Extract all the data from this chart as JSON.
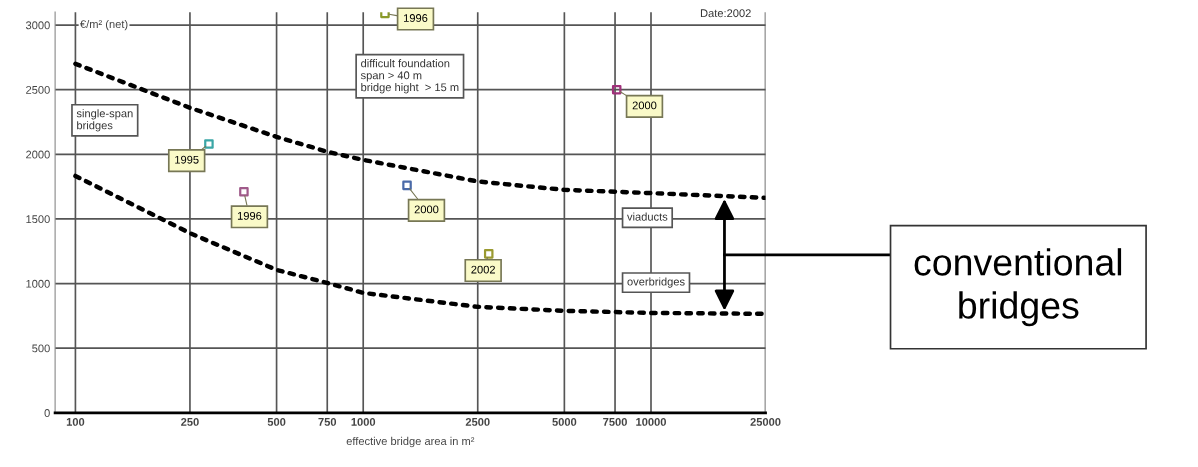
{
  "chart_data": {
    "type": "scatter",
    "xlabel": "effective bridge area in m²",
    "ylabel": "€/m² (net)",
    "log": "x",
    "xlim": [
      85,
      25000
    ],
    "xticks": [
      100,
      250,
      500,
      750,
      1000,
      2500,
      5000,
      7500,
      10000,
      25000
    ],
    "ylim": [
      0,
      3100
    ],
    "yticks": [
      0,
      500,
      1000,
      1500,
      2000,
      2500,
      3000
    ],
    "grid": true,
    "marker": "square",
    "series": [
      {
        "x": [
          291,
          385,
          1190,
          1420,
          7600,
          2730
        ],
        "values": [
          2080,
          1710,
          3090,
          1760,
          2500,
          1230
        ],
        "colors": [
          "#3aa6a6",
          "#a05a8a",
          "#8a9a2a",
          "#4a6aa8",
          "#a0307a",
          "#9a9a30"
        ]
      },
      {
        "type": "line",
        "color": "#000000",
        "line_style": "dotted",
        "marker": "none",
        "x": [
          100,
          250,
          500,
          750,
          1000,
          2500,
          5000,
          10000,
          25000
        ],
        "values": [
          2700,
          2360,
          2135,
          2020,
          1957,
          1790,
          1725,
          1700,
          1663
        ]
      },
      {
        "type": "line",
        "color": "#000000",
        "line_style": "dotted",
        "marker": "none",
        "x": [
          100,
          250,
          500,
          750,
          1000,
          2500,
          5000,
          10000,
          25000
        ],
        "values": [
          1833,
          1390,
          1106,
          1005,
          928,
          820,
          789,
          773,
          766
        ]
      }
    ],
    "annotations": [
      {
        "text": "1995",
        "x": 291,
        "y": 2080
      },
      {
        "text": "1996",
        "x": 385,
        "y": 1710
      },
      {
        "text": "1996",
        "x": 1190,
        "y": 3090
      },
      {
        "text": "2000",
        "x": 1420,
        "y": 1760
      },
      {
        "text": "2000",
        "x": 7600,
        "y": 2500
      },
      {
        "text": "2002",
        "x": 2730,
        "y": 1230
      },
      "Date:2002",
      "single-span\nbridges",
      "difficult foundation\nspan > 40 m\nbridge hight  > 15 m",
      "viaducts",
      "overbridges",
      "conventional\nbridges"
    ]
  }
}
